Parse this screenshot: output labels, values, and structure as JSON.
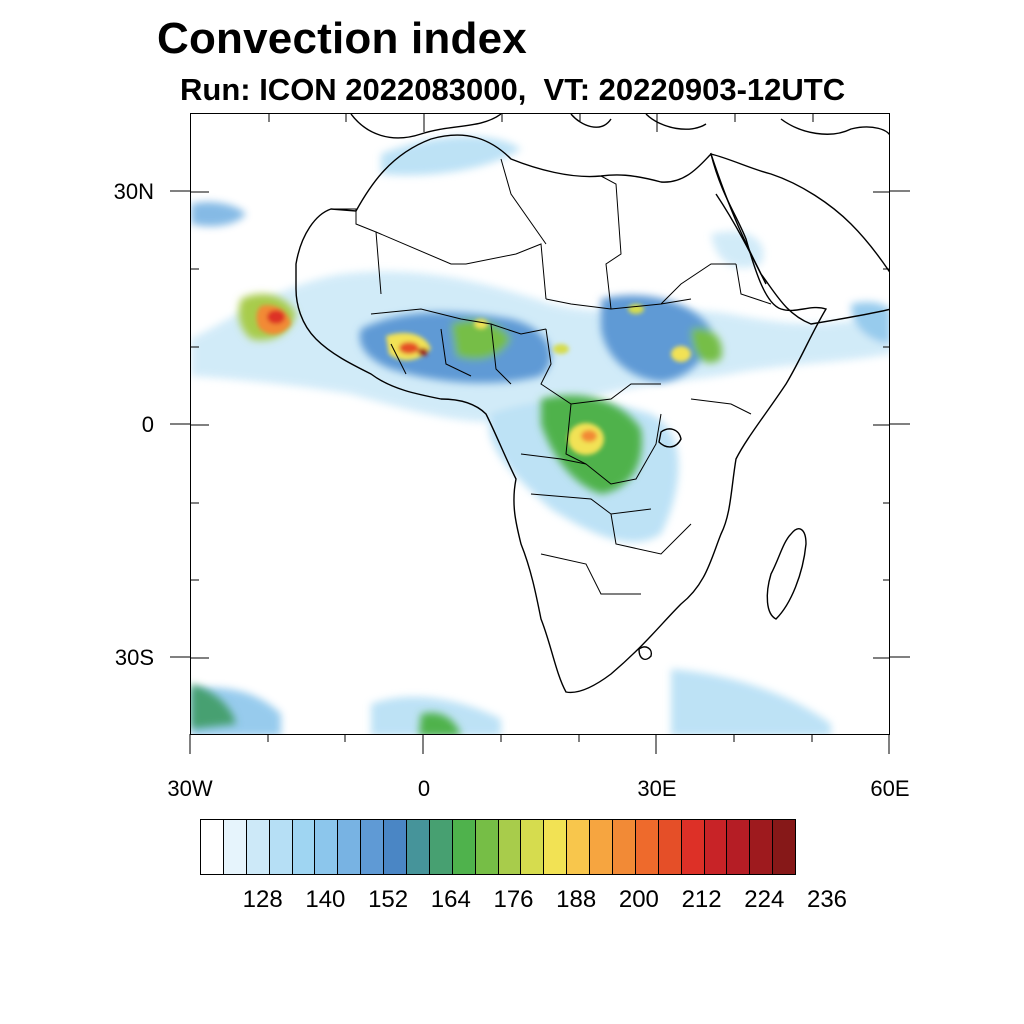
{
  "title": "Convection index",
  "subtitle": "Run: ICON 2022083000,  VT: 20220903-12UTC",
  "map": {
    "region": "Africa",
    "lon_range": [
      -30,
      60
    ],
    "lat_range": [
      -40,
      40
    ],
    "lat_labels": [
      "30N",
      "0",
      "30S"
    ],
    "lon_labels": [
      "30W",
      "0",
      "30E",
      "60E"
    ]
  },
  "colorbar": {
    "colors": [
      "#ffffff",
      "#e6f4fc",
      "#cde9f8",
      "#b6dff5",
      "#9fd5f2",
      "#8cc6ec",
      "#78b3e3",
      "#5f9ad5",
      "#4a86c5",
      "#46949a",
      "#47a071",
      "#4fb24c",
      "#76be46",
      "#a8cc4b",
      "#d6dc4e",
      "#f2e254",
      "#f8c64c",
      "#f6a540",
      "#f28a36",
      "#ee6a2c",
      "#e54f28",
      "#dd3027",
      "#c82327",
      "#b51d25",
      "#9e1a1e",
      "#861818"
    ],
    "tick_labels": [
      "128",
      "140",
      "152",
      "164",
      "176",
      "188",
      "200",
      "212",
      "224",
      "236"
    ]
  }
}
